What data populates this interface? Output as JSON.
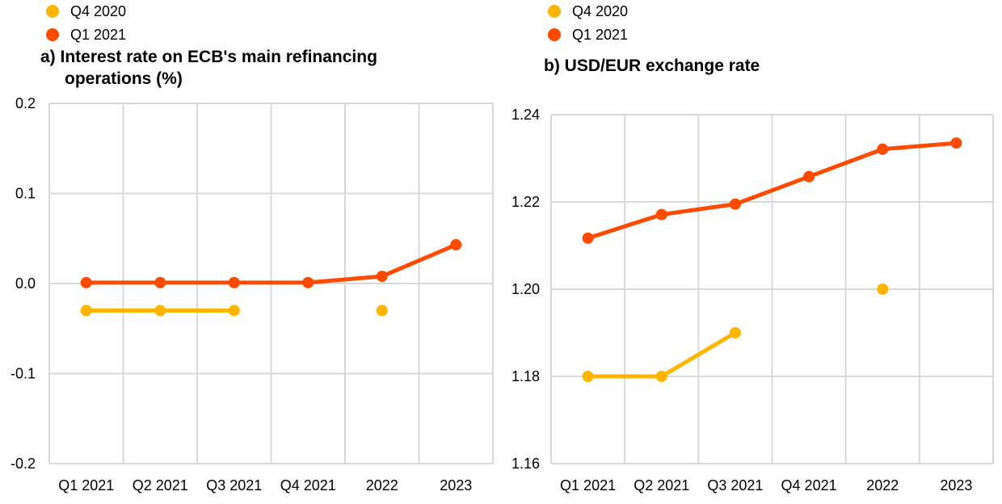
{
  "colors": {
    "series_q4_2020": "#FFB400",
    "series_q1_2021": "#FF4B00",
    "grid": "#D9D9D9"
  },
  "chart_data": [
    {
      "type": "line",
      "title": "a) Interest rate on ECB's main refinancing operations (%)",
      "title_lines": [
        "a) Interest rate on ECB's main refinancing",
        "operations (%)"
      ],
      "categories": [
        "Q1 2021",
        "Q2 2021",
        "Q3 2021",
        "Q4 2021",
        "2022",
        "2023"
      ],
      "ylim": [
        -0.2,
        0.2
      ],
      "yticks": [
        -0.2,
        -0.1,
        0.0,
        0.1,
        0.2
      ],
      "ytick_labels": [
        "-0.2",
        "-0.1",
        "0.0",
        "0.1",
        "0.2"
      ],
      "grid": true,
      "legend_position": "top-left",
      "series": [
        {
          "name": "Q4 2020",
          "color": "#FFB400",
          "values": [
            -0.03,
            -0.03,
            -0.03,
            null,
            -0.03,
            null
          ]
        },
        {
          "name": "Q1 2021",
          "color": "#FF4B00",
          "values": [
            0.001,
            0.001,
            0.001,
            0.001,
            0.008,
            0.043
          ]
        }
      ]
    },
    {
      "type": "line",
      "title": "b) USD/EUR exchange rate",
      "title_lines": [
        "b) USD/EUR exchange rate"
      ],
      "categories": [
        "Q1 2021",
        "Q2 2021",
        "Q3 2021",
        "Q4 2021",
        "2022",
        "2023"
      ],
      "ylim": [
        1.16,
        1.24
      ],
      "yticks": [
        1.16,
        1.18,
        1.2,
        1.22,
        1.24
      ],
      "ytick_labels": [
        "1.16",
        "1.18",
        "1.20",
        "1.22",
        "1.24"
      ],
      "grid": true,
      "legend_position": "top-left",
      "series": [
        {
          "name": "Q4 2020",
          "color": "#FFB400",
          "values": [
            1.18,
            1.18,
            1.19,
            null,
            1.2,
            null
          ]
        },
        {
          "name": "Q1 2021",
          "color": "#FF4B00",
          "values": [
            1.2117,
            1.2171,
            1.2195,
            1.2258,
            1.2321,
            1.2335
          ]
        }
      ]
    }
  ]
}
